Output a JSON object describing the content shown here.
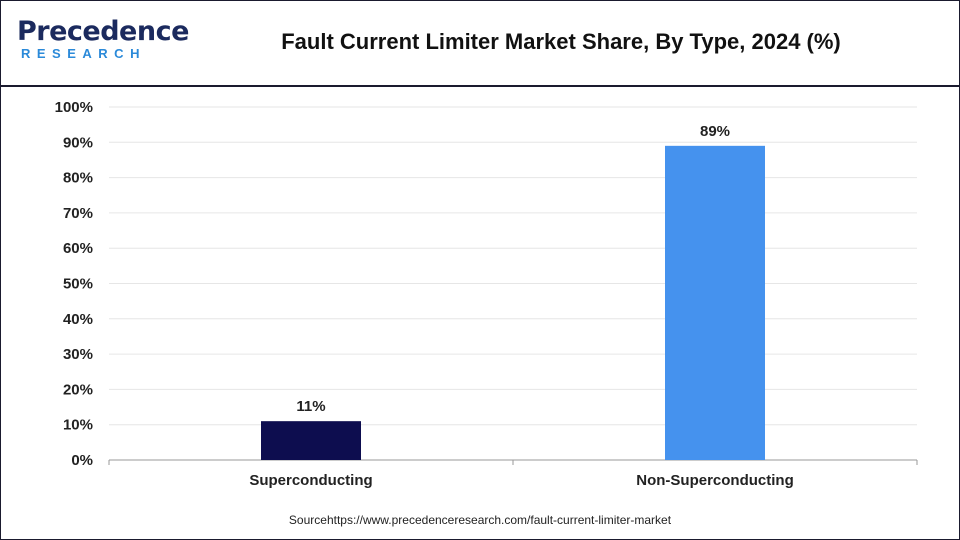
{
  "header": {
    "logo_main": "Precedence",
    "logo_sub": "RESEARCH",
    "title": "Fault Current Limiter Market Share, By Type, 2024 (%)"
  },
  "chart_data": {
    "type": "bar",
    "title": "Fault Current Limiter Market Share, By Type, 2024 (%)",
    "categories": [
      "Superconducting",
      "Non-Superconducting"
    ],
    "values": [
      11,
      89
    ],
    "data_labels": [
      "11%",
      "89%"
    ],
    "colors": [
      "#0d0d4f",
      "#4592ee"
    ],
    "xlabel": "",
    "ylabel": "",
    "ylim": [
      0,
      100
    ],
    "yticks": [
      "0%",
      "10%",
      "20%",
      "30%",
      "40%",
      "50%",
      "60%",
      "70%",
      "80%",
      "90%",
      "100%"
    ],
    "grid": true,
    "legend": "none"
  },
  "footer": {
    "source": "Sourcehttps://www.precedenceresearch.com/fault-current-limiter-market"
  }
}
